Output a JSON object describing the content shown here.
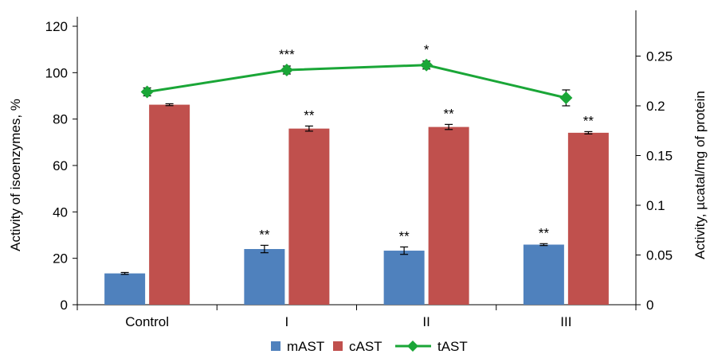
{
  "chart_data": {
    "type": "bar",
    "categories": [
      "Control",
      "I",
      "II",
      "III"
    ],
    "series": [
      {
        "name": "mAST",
        "kind": "bar",
        "axis": "left",
        "color": "#4f81bd",
        "values": [
          13.5,
          24,
          23.3,
          25.9
        ],
        "errors": [
          0.4,
          1.6,
          1.6,
          0.4
        ],
        "significance": [
          "",
          "**",
          "**",
          "**"
        ]
      },
      {
        "name": "cAST",
        "kind": "bar",
        "axis": "left",
        "color": "#c0504d",
        "values": [
          86.2,
          75.9,
          76.6,
          74.1
        ],
        "errors": [
          0.4,
          1.1,
          1.1,
          0.5
        ],
        "significance": [
          "",
          "**",
          "**",
          "**"
        ]
      },
      {
        "name": "tAST",
        "kind": "line",
        "axis": "right",
        "color": "#1aa637",
        "values": [
          0.214,
          0.236,
          0.241,
          0.208
        ],
        "errors": [
          0.004,
          0.004,
          0.004,
          0.008
        ],
        "significance": [
          "",
          "***",
          "*",
          ""
        ]
      }
    ],
    "yleft": {
      "label": "Activity of isoenzymes, %",
      "lim": [
        0,
        120
      ],
      "ticks": [
        "0",
        "20",
        "40",
        "60",
        "80",
        "100",
        "120"
      ]
    },
    "yright": {
      "label": "Activity, µcatal/mg of protein",
      "lim": [
        0,
        0.28
      ],
      "ticks": [
        "0",
        "0.05",
        "0.1",
        "0.15",
        "0.2",
        "0.25"
      ]
    },
    "grid": false,
    "legend_position": "bottom"
  }
}
